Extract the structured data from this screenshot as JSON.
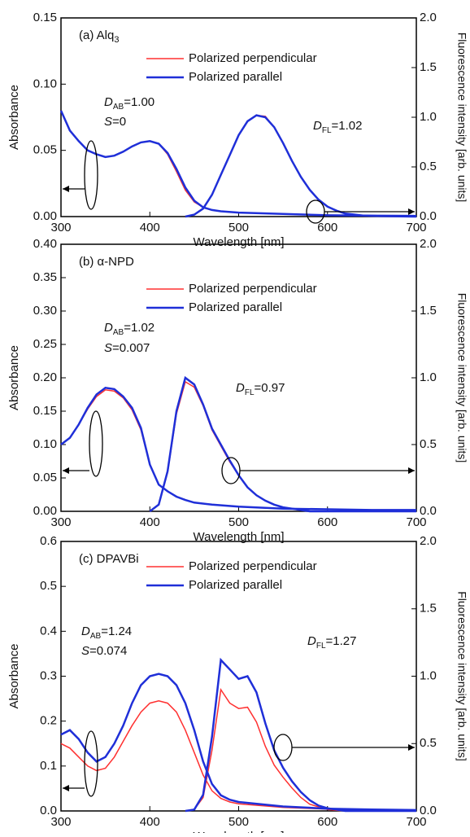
{
  "chart_data": [
    {
      "type": "line",
      "title": "(a) Alq",
      "title_sub": "3",
      "xlabel": "Wavelength [nm]",
      "ylabel": "Absorbance",
      "y2label": "Fluorescence intensity [arb. units]",
      "xlim": [
        300,
        700
      ],
      "xticks": [
        300,
        400,
        500,
        600,
        700
      ],
      "ylim": [
        0,
        0.15
      ],
      "yticks": [
        {
          "value": 0,
          "label": "0.00"
        },
        {
          "value": 0.05,
          "label": "0.05"
        },
        {
          "value": 0.1,
          "label": "0.10"
        },
        {
          "value": 0.15,
          "label": "0.15"
        }
      ],
      "y2lim": [
        0,
        2
      ],
      "y2ticks": [
        {
          "value": 0,
          "label": "0.0"
        },
        {
          "value": 0.5,
          "label": "0.5"
        },
        {
          "value": 1,
          "label": "1.0"
        },
        {
          "value": 1.5,
          "label": "1.5"
        },
        {
          "value": 2,
          "label": "2.0"
        }
      ],
      "annotations": [
        {
          "italic": "D",
          "sub": "AB",
          "text": "=1.00"
        },
        {
          "italic": "S",
          "text": "=0"
        },
        {
          "italic": "D",
          "sub": "FL",
          "text": "=1.02"
        }
      ],
      "x": [
        300,
        310,
        320,
        330,
        340,
        350,
        360,
        370,
        380,
        390,
        400,
        410,
        420,
        430,
        440,
        450,
        460,
        470,
        480,
        500,
        550,
        600,
        650,
        700
      ],
      "x2": [
        440,
        450,
        460,
        470,
        480,
        490,
        500,
        510,
        520,
        530,
        540,
        550,
        560,
        570,
        580,
        590,
        600,
        610,
        620,
        640,
        660,
        700
      ],
      "series": [
        {
          "name": "Polarized perpendicular",
          "color": "#ff3030",
          "width": 1.5,
          "values": [
            0.08,
            0.065,
            0.057,
            0.05,
            0.047,
            0.045,
            0.046,
            0.049,
            0.053,
            0.056,
            0.057,
            0.055,
            0.047,
            0.034,
            0.02,
            0.011,
            0.007,
            0.005,
            0.004,
            0.003,
            0.002,
            0.001,
            0.0007,
            0.0005
          ],
          "y2values": [
            0,
            0.02,
            0.08,
            0.22,
            0.42,
            0.62,
            0.82,
            0.96,
            1.02,
            1.01,
            0.9,
            0.74,
            0.56,
            0.4,
            0.27,
            0.17,
            0.1,
            0.06,
            0.03,
            0.01,
            0.005,
            0
          ]
        },
        {
          "name": "Polarized parallel",
          "color": "#1f2fd8",
          "width": 2.5,
          "values": [
            0.08,
            0.065,
            0.057,
            0.05,
            0.047,
            0.045,
            0.046,
            0.049,
            0.053,
            0.056,
            0.057,
            0.055,
            0.048,
            0.036,
            0.022,
            0.012,
            0.007,
            0.005,
            0.004,
            0.003,
            0.002,
            0.001,
            0.0007,
            0.0005
          ],
          "y2values": [
            0,
            0.02,
            0.08,
            0.22,
            0.42,
            0.62,
            0.82,
            0.96,
            1.02,
            1.0,
            0.9,
            0.74,
            0.56,
            0.4,
            0.27,
            0.17,
            0.1,
            0.06,
            0.03,
            0.01,
            0.005,
            0
          ]
        }
      ]
    },
    {
      "type": "line",
      "title": "(b) α-NPD",
      "xlabel": "Wavelength [nm]",
      "ylabel": "Absorbance",
      "y2label": "Fluorescence intensity [arb. units]",
      "xlim": [
        300,
        700
      ],
      "xticks": [
        300,
        400,
        500,
        600,
        700
      ],
      "ylim": [
        0,
        0.4
      ],
      "yticks": [
        {
          "value": 0,
          "label": "0.00"
        },
        {
          "value": 0.05,
          "label": "0.05"
        },
        {
          "value": 0.1,
          "label": "0.10"
        },
        {
          "value": 0.15,
          "label": "0.15"
        },
        {
          "value": 0.2,
          "label": "0.20"
        },
        {
          "value": 0.25,
          "label": "0.25"
        },
        {
          "value": 0.3,
          "label": "0.30"
        },
        {
          "value": 0.35,
          "label": "0.35"
        },
        {
          "value": 0.4,
          "label": "0.40"
        }
      ],
      "y2lim": [
        0,
        2
      ],
      "y2ticks": [
        {
          "value": 0,
          "label": "0.0"
        },
        {
          "value": 0.5,
          "label": "0.5"
        },
        {
          "value": 1,
          "label": "1.0"
        },
        {
          "value": 1.5,
          "label": "1.5"
        },
        {
          "value": 2,
          "label": "2.0"
        }
      ],
      "annotations": [
        {
          "italic": "D",
          "sub": "AB",
          "text": "=1.02"
        },
        {
          "italic": "S",
          "text": "=0.007"
        },
        {
          "italic": "D",
          "sub": "FL",
          "text": "=0.97"
        }
      ],
      "x": [
        300,
        310,
        320,
        330,
        340,
        350,
        360,
        370,
        380,
        390,
        400,
        410,
        420,
        430,
        440,
        450,
        470,
        500,
        550,
        600,
        650,
        700
      ],
      "x2": [
        400,
        410,
        420,
        430,
        440,
        450,
        460,
        470,
        480,
        490,
        500,
        510,
        520,
        530,
        540,
        550,
        560,
        570,
        580,
        600,
        700
      ],
      "series": [
        {
          "name": "Polarized perpendicular",
          "color": "#ff3030",
          "width": 1.5,
          "values": [
            0.1,
            0.11,
            0.13,
            0.153,
            0.172,
            0.182,
            0.18,
            0.17,
            0.152,
            0.122,
            0.07,
            0.04,
            0.03,
            0.022,
            0.017,
            0.013,
            0.01,
            0.007,
            0.004,
            0.003,
            0.002,
            0.002
          ],
          "y2values": [
            0,
            0.05,
            0.29,
            0.73,
            0.97,
            0.93,
            0.79,
            0.61,
            0.49,
            0.37,
            0.27,
            0.18,
            0.12,
            0.08,
            0.05,
            0.03,
            0.02,
            0.01,
            0,
            0,
            0
          ]
        },
        {
          "name": "Polarized parallel",
          "color": "#1f2fd8",
          "width": 2.5,
          "values": [
            0.1,
            0.11,
            0.13,
            0.155,
            0.175,
            0.185,
            0.183,
            0.172,
            0.155,
            0.125,
            0.07,
            0.04,
            0.03,
            0.022,
            0.017,
            0.013,
            0.01,
            0.007,
            0.004,
            0.003,
            0.002,
            0.002
          ],
          "y2values": [
            0,
            0.05,
            0.3,
            0.75,
            1.0,
            0.95,
            0.8,
            0.62,
            0.5,
            0.38,
            0.27,
            0.18,
            0.12,
            0.08,
            0.05,
            0.03,
            0.02,
            0.01,
            0,
            0,
            0
          ]
        }
      ]
    },
    {
      "type": "line",
      "title": "(c) DPAVBi",
      "xlabel": "Wavelength [nm]",
      "ylabel": "Absorbance",
      "y2label": "Fluorescence intensity [arb. units]",
      "xlim": [
        300,
        700
      ],
      "xticks": [
        300,
        400,
        500,
        600,
        700
      ],
      "ylim": [
        0,
        0.6
      ],
      "yticks": [
        {
          "value": 0,
          "label": "0.0"
        },
        0.1,
        0.2,
        0.3,
        0.4,
        0.5,
        0.6
      ],
      "y2lim": [
        0,
        2
      ],
      "y2ticks": [
        {
          "value": 0,
          "label": "0.0"
        },
        {
          "value": 0.5,
          "label": "0.5"
        },
        {
          "value": 1,
          "label": "1.0"
        },
        {
          "value": 1.5,
          "label": "1.5"
        },
        {
          "value": 2,
          "label": "2.0"
        }
      ],
      "annotations": [
        {
          "italic": "D",
          "sub": "AB",
          "text": "=1.24"
        },
        {
          "italic": "S",
          "text": "=0.074"
        },
        {
          "italic": "D",
          "sub": "FL",
          "text": "=1.27"
        }
      ],
      "x": [
        300,
        310,
        320,
        330,
        340,
        350,
        360,
        370,
        380,
        390,
        400,
        410,
        420,
        430,
        440,
        450,
        460,
        470,
        480,
        490,
        500,
        550,
        600,
        650,
        700
      ],
      "x2": [
        440,
        450,
        460,
        470,
        480,
        490,
        500,
        510,
        520,
        530,
        540,
        550,
        560,
        570,
        580,
        590,
        600,
        610,
        620,
        700
      ],
      "series": [
        {
          "name": "Polarized perpendicular",
          "color": "#ff3030",
          "width": 1.5,
          "values": [
            0.15,
            0.14,
            0.12,
            0.1,
            0.09,
            0.095,
            0.12,
            0.155,
            0.19,
            0.22,
            0.24,
            0.245,
            0.24,
            0.22,
            0.18,
            0.13,
            0.08,
            0.045,
            0.028,
            0.02,
            0.016,
            0.008,
            0.004,
            0.002,
            0.002
          ],
          "y2values": [
            0,
            0.01,
            0.1,
            0.45,
            0.9,
            0.8,
            0.76,
            0.77,
            0.66,
            0.48,
            0.34,
            0.25,
            0.17,
            0.1,
            0.05,
            0.03,
            0.01,
            0.005,
            0,
            0
          ]
        },
        {
          "name": "Polarized parallel",
          "color": "#1f2fd8",
          "width": 2.5,
          "values": [
            0.17,
            0.18,
            0.16,
            0.13,
            0.11,
            0.12,
            0.15,
            0.19,
            0.24,
            0.28,
            0.3,
            0.305,
            0.3,
            0.28,
            0.24,
            0.18,
            0.11,
            0.06,
            0.035,
            0.025,
            0.02,
            0.01,
            0.005,
            0.003,
            0.002
          ],
          "y2values": [
            0,
            0.01,
            0.12,
            0.55,
            1.12,
            1.05,
            0.98,
            1.0,
            0.88,
            0.65,
            0.45,
            0.32,
            0.22,
            0.14,
            0.08,
            0.04,
            0.02,
            0.01,
            0,
            0
          ]
        }
      ]
    }
  ]
}
